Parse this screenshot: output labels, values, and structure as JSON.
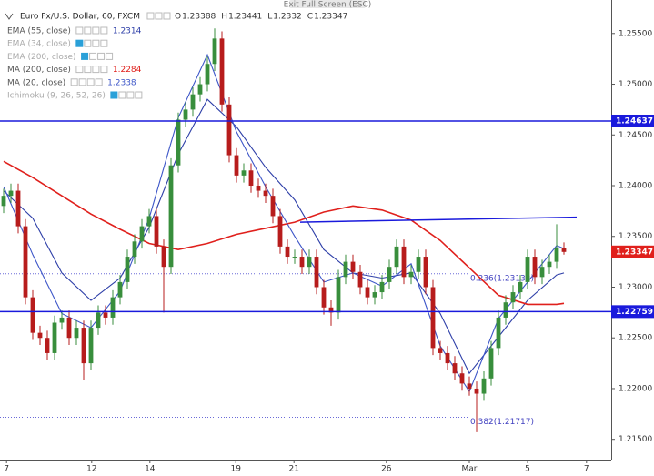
{
  "chart_data": {
    "type": "candlestick",
    "title": "Euro Fx/U.S. Dollar, 60, FXCM",
    "exit_fullscreen": "Exit Full Screen (ESC)",
    "ohlc_labels": [
      "O",
      "H",
      "L",
      "C"
    ],
    "up_color": "#388e3c",
    "down_color": "#b71c1c",
    "x": [
      0,
      1,
      2,
      3,
      4,
      5,
      6,
      7,
      8,
      9,
      10,
      11,
      12,
      13,
      14,
      15,
      16,
      17,
      18,
      19,
      20,
      21,
      22,
      23,
      24,
      25,
      26,
      27,
      28,
      29,
      30,
      31,
      32,
      33,
      34,
      35,
      36,
      37,
      38,
      39,
      40,
      41,
      42,
      43,
      44,
      45,
      46,
      47,
      48,
      49,
      50,
      51,
      52,
      53,
      54,
      55,
      56,
      57,
      58,
      59,
      60,
      61,
      62,
      63,
      64,
      65,
      66,
      67,
      68,
      69,
      70,
      71,
      72,
      73,
      74,
      75,
      76,
      77
    ],
    "open": [
      1.238,
      1.239,
      1.2395,
      1.236,
      1.229,
      1.2255,
      1.225,
      1.2235,
      1.2265,
      1.227,
      1.225,
      1.226,
      1.2225,
      1.226,
      1.2275,
      1.227,
      1.229,
      1.2305,
      1.233,
      1.2345,
      1.236,
      1.237,
      1.234,
      1.232,
      1.242,
      1.2465,
      1.2475,
      1.249,
      1.25,
      1.252,
      1.2545,
      1.248,
      1.243,
      1.241,
      1.2415,
      1.24,
      1.2395,
      1.239,
      1.237,
      1.234,
      1.233,
      1.233,
      1.232,
      1.233,
      1.23,
      1.228,
      1.2275,
      1.231,
      1.2325,
      1.2315,
      1.23,
      1.229,
      1.2295,
      1.2305,
      1.232,
      1.234,
      1.231,
      1.2315,
      1.233,
      1.23,
      1.224,
      1.2235,
      1.2225,
      1.2215,
      1.2205,
      1.22,
      1.2195,
      1.221,
      1.224,
      1.227,
      1.2285,
      1.2295,
      1.2305,
      1.233,
      1.231,
      1.232,
      1.2325,
      1.23388
    ],
    "high": [
      1.2397,
      1.2402,
      1.2402,
      1.2367,
      1.2297,
      1.2262,
      1.2257,
      1.2272,
      1.2277,
      1.2277,
      1.2267,
      1.2267,
      1.2267,
      1.2282,
      1.2282,
      1.2297,
      1.2312,
      1.2337,
      1.2352,
      1.2367,
      1.2377,
      1.2377,
      1.2347,
      1.2427,
      1.2472,
      1.2482,
      1.2497,
      1.2507,
      1.2527,
      1.2555,
      1.2552,
      1.2487,
      1.2437,
      1.2422,
      1.2422,
      1.2407,
      1.2402,
      1.2397,
      1.2377,
      1.2347,
      1.2337,
      1.2337,
      1.2337,
      1.2337,
      1.2307,
      1.2287,
      1.2317,
      1.2332,
      1.2332,
      1.2322,
      1.2307,
      1.2302,
      1.2312,
      1.2327,
      1.2347,
      1.2347,
      1.2322,
      1.2337,
      1.2337,
      1.2307,
      1.2247,
      1.2242,
      1.2232,
      1.2222,
      1.2212,
      1.2207,
      1.2217,
      1.2247,
      1.2277,
      1.2292,
      1.2302,
      1.2312,
      1.2337,
      1.2337,
      1.2327,
      1.2332,
      1.2362,
      1.23441
    ],
    "low": [
      1.2373,
      1.2383,
      1.2353,
      1.2283,
      1.2248,
      1.2243,
      1.2228,
      1.2228,
      1.2258,
      1.2243,
      1.2243,
      1.2208,
      1.2218,
      1.2253,
      1.2263,
      1.2263,
      1.2283,
      1.2298,
      1.2323,
      1.2338,
      1.2353,
      1.2333,
      1.2275,
      1.2313,
      1.2413,
      1.2458,
      1.2468,
      1.2483,
      1.2493,
      1.2513,
      1.2473,
      1.2423,
      1.2403,
      1.2403,
      1.2393,
      1.2388,
      1.2383,
      1.2363,
      1.2333,
      1.2323,
      1.2323,
      1.2313,
      1.2313,
      1.2293,
      1.2273,
      1.2262,
      1.2268,
      1.2303,
      1.2308,
      1.2293,
      1.2283,
      1.2283,
      1.2288,
      1.2298,
      1.2313,
      1.2303,
      1.2303,
      1.2308,
      1.2293,
      1.2233,
      1.2228,
      1.2218,
      1.2208,
      1.2198,
      1.2193,
      1.2157,
      1.2188,
      1.2203,
      1.2233,
      1.2263,
      1.2278,
      1.2288,
      1.2298,
      1.2303,
      1.2303,
      1.2313,
      1.2318,
      1.2332
    ],
    "close": [
      1.239,
      1.2395,
      1.236,
      1.229,
      1.2255,
      1.225,
      1.2235,
      1.2265,
      1.227,
      1.225,
      1.226,
      1.2225,
      1.226,
      1.2275,
      1.227,
      1.229,
      1.2305,
      1.233,
      1.2345,
      1.236,
      1.237,
      1.234,
      1.232,
      1.242,
      1.2465,
      1.2475,
      1.249,
      1.25,
      1.252,
      1.2545,
      1.248,
      1.243,
      1.241,
      1.2415,
      1.24,
      1.2395,
      1.239,
      1.237,
      1.234,
      1.233,
      1.233,
      1.232,
      1.233,
      1.23,
      1.228,
      1.2275,
      1.231,
      1.2325,
      1.2315,
      1.23,
      1.229,
      1.2295,
      1.2305,
      1.232,
      1.234,
      1.231,
      1.2315,
      1.233,
      1.23,
      1.224,
      1.2235,
      1.2225,
      1.2215,
      1.2205,
      1.22,
      1.2195,
      1.221,
      1.224,
      1.227,
      1.2285,
      1.2295,
      1.2305,
      1.233,
      1.231,
      1.232,
      1.2325,
      1.23388,
      1.23347
    ],
    "indicators": [
      {
        "name": "EMA (55, close)",
        "visible": true,
        "color": "#2e3fa8",
        "x": [
          0,
          4,
          8,
          12,
          16,
          20,
          24,
          28,
          32,
          36,
          40,
          44,
          48,
          52,
          56,
          60,
          64,
          68,
          72,
          76,
          77
        ],
        "values": [
          1.2395,
          1.2368,
          1.2314,
          1.2287,
          1.2309,
          1.2359,
          1.2431,
          1.2485,
          1.2458,
          1.2418,
          1.2386,
          1.2337,
          1.2314,
          1.2309,
          1.2314,
          1.2274,
          1.2215,
          1.2251,
          1.2287,
          1.2312,
          1.2314
        ]
      },
      {
        "name": "EMA (34, close)",
        "visible": false
      },
      {
        "name": "EMA (200, close)",
        "visible": false
      },
      {
        "name": "MA (200, close)",
        "visible": true,
        "color": "#e0201c",
        "x": [
          0,
          4,
          8,
          12,
          16,
          20,
          24,
          28,
          32,
          36,
          40,
          44,
          48,
          52,
          56,
          60,
          64,
          68,
          72,
          76,
          77
        ],
        "values": [
          1.2424,
          1.2408,
          1.239,
          1.2372,
          1.2357,
          1.2343,
          1.2337,
          1.2343,
          1.2352,
          1.2358,
          1.2364,
          1.2374,
          1.238,
          1.2376,
          1.2366,
          1.2346,
          1.2319,
          1.2292,
          1.2283,
          1.2283,
          1.2284
        ]
      },
      {
        "name": "MA (20, close)",
        "visible": true,
        "color": "#3d56c8",
        "x": [
          0,
          4,
          8,
          12,
          16,
          20,
          24,
          28,
          32,
          36,
          40,
          44,
          48,
          52,
          56,
          60,
          64,
          68,
          72,
          76,
          77
        ],
        "values": [
          1.2399,
          1.2332,
          1.2274,
          1.226,
          1.2296,
          1.2368,
          1.2467,
          1.2529,
          1.2453,
          1.2399,
          1.235,
          1.2305,
          1.2314,
          1.2301,
          1.2323,
          1.2242,
          1.2197,
          1.2269,
          1.2305,
          1.2341,
          1.2338
        ]
      },
      {
        "name": "Ichimoku (9, 26, 52, 26)",
        "visible": false
      }
    ],
    "hlines": [
      1.24637,
      1.22759
    ],
    "hline_color": "#1a1adc",
    "trendline": {
      "x": [
        40.75,
        78.75
      ],
      "values": [
        1.2364,
        1.2369
      ]
    },
    "fib_levels": [
      {
        "value": 1.23132,
        "label": "0.236(1.23132)"
      },
      {
        "value": 1.21717,
        "label": "0.382(1.21717)"
      }
    ],
    "last_price_color": "#e0201c",
    "xlim": [
      -0.5,
      83.5
    ],
    "xticks": [
      {
        "value": 0.4,
        "label": "7"
      },
      {
        "value": 12.1,
        "label": "12"
      },
      {
        "value": 20.1,
        "label": "14"
      },
      {
        "value": 31.9,
        "label": "19"
      },
      {
        "value": 39.9,
        "label": "21"
      },
      {
        "value": 52.6,
        "label": "26"
      },
      {
        "value": 64,
        "label": "Mar"
      },
      {
        "value": 72,
        "label": "5"
      },
      {
        "value": 80.1,
        "label": "7"
      }
    ],
    "ylim": [
      1.213,
      1.2583
    ],
    "yticks": [
      {
        "value": 1.215,
        "label": "1.21500"
      },
      {
        "value": 1.22,
        "label": "1.22000"
      },
      {
        "value": 1.225,
        "label": "1.22500"
      },
      {
        "value": 1.23,
        "label": "1.23000"
      },
      {
        "value": 1.235,
        "label": "1.23500"
      },
      {
        "value": 1.24,
        "label": "1.24000"
      },
      {
        "value": 1.245,
        "label": "1.24500"
      },
      {
        "value": 1.25,
        "label": "1.25000"
      },
      {
        "value": 1.255,
        "label": "1.25500"
      }
    ],
    "grid": false
  }
}
